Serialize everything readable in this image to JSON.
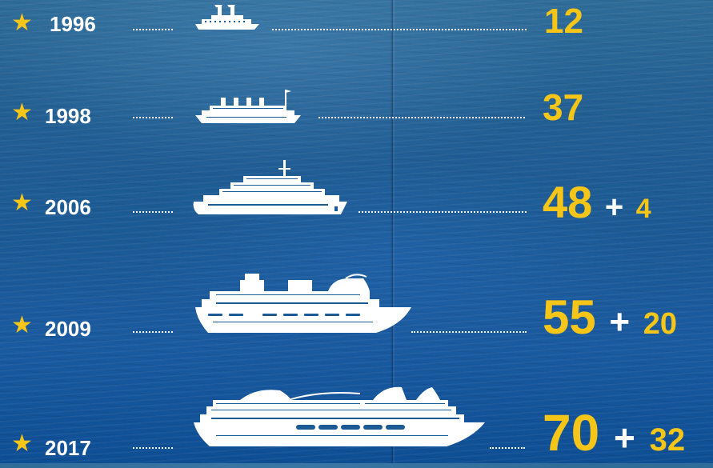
{
  "rows": [
    {
      "year": "1996",
      "value": "12",
      "plus": "",
      "extra": "",
      "ship_icon": "steamship-icon"
    },
    {
      "year": "1998",
      "value": "37",
      "plus": "",
      "extra": "",
      "ship_icon": "ocean-liner-icon"
    },
    {
      "year": "2006",
      "value": "48",
      "plus": "+",
      "extra": "4",
      "ship_icon": "cruise-ferry-icon"
    },
    {
      "year": "2009",
      "value": "55",
      "plus": "+",
      "extra": "20",
      "ship_icon": "cruise-ship-icon"
    },
    {
      "year": "2017",
      "value": "70",
      "plus": "+",
      "extra": "32",
      "ship_icon": "mega-cruise-ship-icon"
    }
  ],
  "colors": {
    "accent": "#f5c518",
    "text": "#ffffff",
    "sea": "#1a5aa0"
  }
}
